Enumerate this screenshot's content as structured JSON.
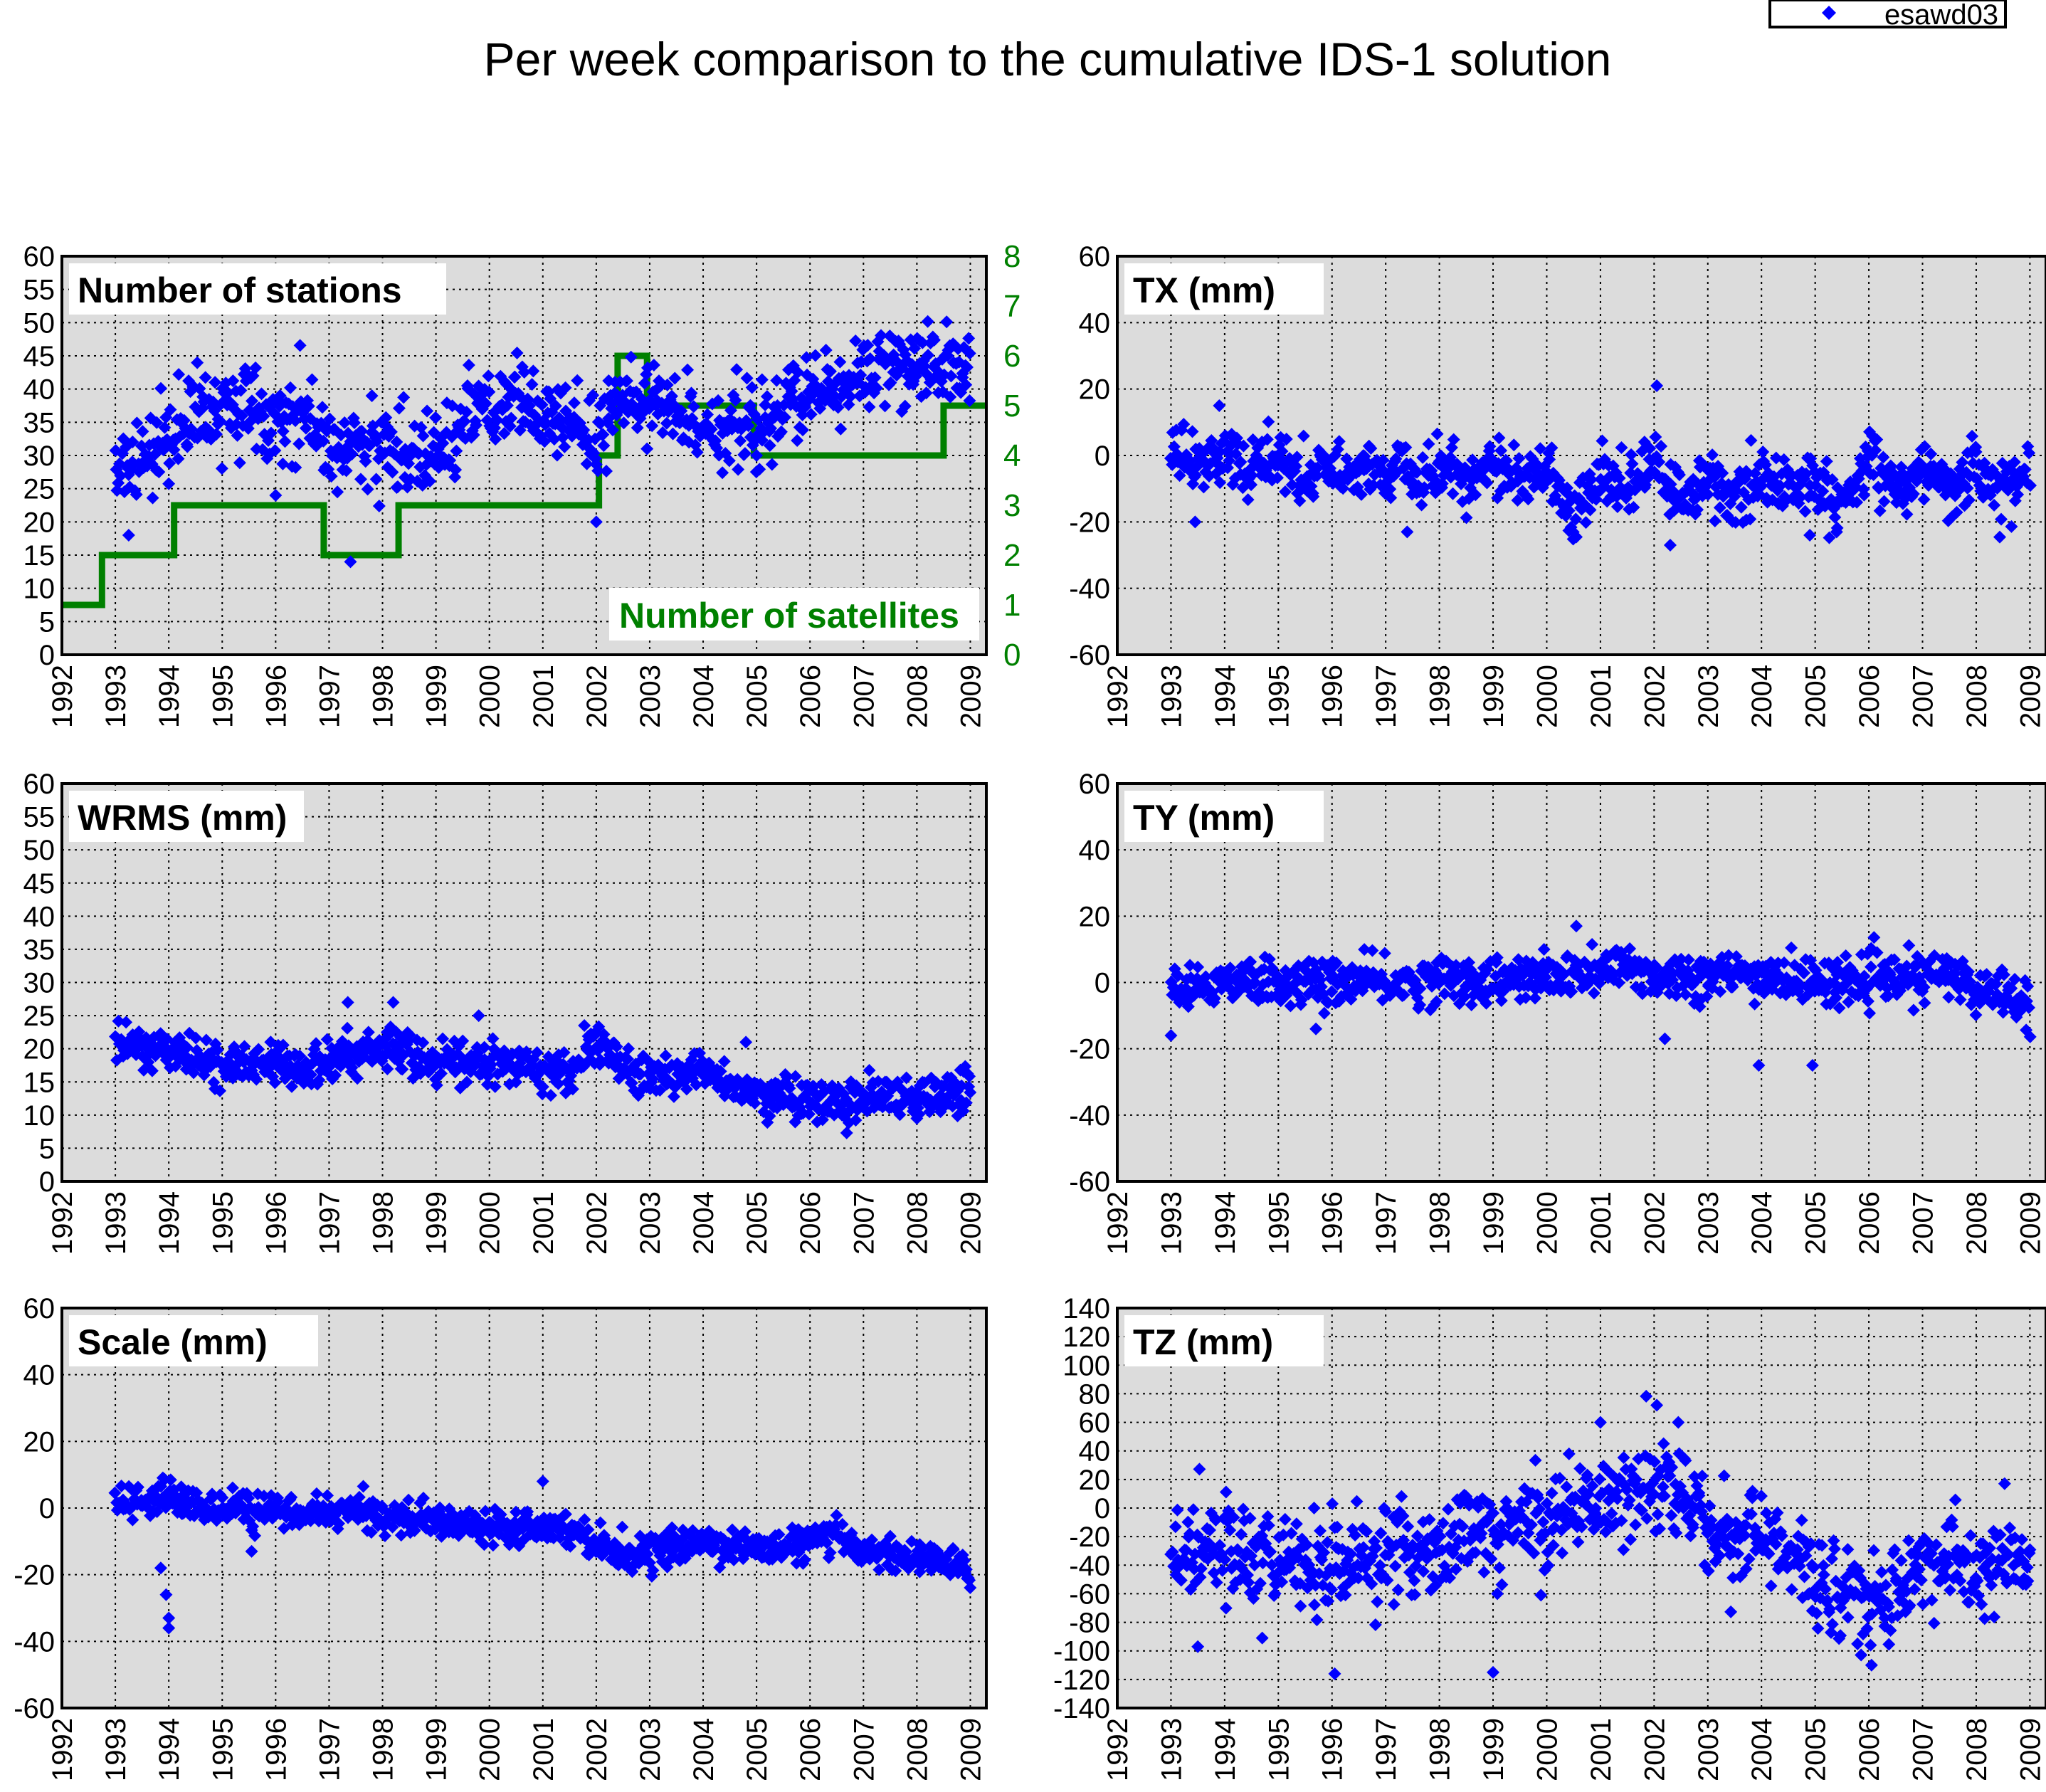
{
  "title": "Per week comparison to the cumulative IDS-1 solution",
  "legend": {
    "label": "esawd03",
    "color": "#0000ff",
    "marker": "diamond",
    "placement": "top-right"
  },
  "colors": {
    "plot_bg": "#dcdcdc",
    "points": "#0000ff",
    "satellites": "#008000",
    "frame": "#000000",
    "grid": "#000000"
  },
  "x_ticks": [
    "1992",
    "1993",
    "1994",
    "1995",
    "1996",
    "1997",
    "1998",
    "1999",
    "2000",
    "2001",
    "2002",
    "2003",
    "2004",
    "2005",
    "2006",
    "2007",
    "2008",
    "2009"
  ],
  "chart_data": [
    {
      "id": "stations",
      "type": "scatter",
      "label": "Number of stations",
      "xlim": [
        1992,
        2009.3
      ],
      "ylim": [
        0,
        60
      ],
      "yticks": [
        "0",
        "5",
        "10",
        "15",
        "20",
        "25",
        "30",
        "35",
        "40",
        "45",
        "50",
        "55",
        "60"
      ],
      "grid": true,
      "trend": [
        [
          1993.0,
          28
        ],
        [
          1993.5,
          30
        ],
        [
          1994.0,
          32
        ],
        [
          1994.5,
          37
        ],
        [
          1995.0,
          37
        ],
        [
          1995.5,
          38
        ],
        [
          1996.0,
          36
        ],
        [
          1996.5,
          37
        ],
        [
          1997.0,
          31
        ],
        [
          1997.5,
          31
        ],
        [
          1998.0,
          32
        ],
        [
          1998.5,
          30
        ],
        [
          1999.0,
          30
        ],
        [
          1999.5,
          35
        ],
        [
          2000.0,
          36
        ],
        [
          2000.5,
          38
        ],
        [
          2001.0,
          35
        ],
        [
          2001.5,
          35
        ],
        [
          2002.0,
          33
        ],
        [
          2002.5,
          38
        ],
        [
          2003.0,
          38
        ],
        [
          2003.5,
          36
        ],
        [
          2004.0,
          35
        ],
        [
          2004.5,
          34
        ],
        [
          2005.0,
          34
        ],
        [
          2005.5,
          37
        ],
        [
          2006.0,
          39
        ],
        [
          2006.5,
          40
        ],
        [
          2007.0,
          42
        ],
        [
          2007.5,
          45
        ],
        [
          2008.0,
          42
        ],
        [
          2008.5,
          43
        ],
        [
          2009.0,
          44
        ]
      ],
      "noise": 3.0,
      "outliers": [
        [
          1993.25,
          18
        ],
        [
          1996.0,
          24
        ],
        [
          1997.4,
          14
        ],
        [
          2002.0,
          20
        ],
        [
          2002.95,
          31
        ],
        [
          2005.0,
          30
        ]
      ],
      "secondary_axis": {
        "label": "Number of satellites",
        "ylim": [
          0,
          8
        ],
        "yticks": [
          "0",
          "1",
          "2",
          "3",
          "4",
          "5",
          "6",
          "7",
          "8"
        ],
        "step_series": [
          [
            1992.0,
            1
          ],
          [
            1992.75,
            2
          ],
          [
            1994.1,
            3
          ],
          [
            1996.9,
            2
          ],
          [
            1998.3,
            3
          ],
          [
            2002.05,
            4
          ],
          [
            2002.4,
            6
          ],
          [
            2002.95,
            5
          ],
          [
            2004.95,
            4
          ],
          [
            2008.5,
            5
          ],
          [
            2009.3,
            5
          ]
        ]
      }
    },
    {
      "id": "tx",
      "type": "scatter",
      "label": "TX (mm)",
      "xlim": [
        1992,
        2009.3
      ],
      "ylim": [
        -60,
        60
      ],
      "yticks": [
        "-60",
        "-40",
        "-20",
        "0",
        "20",
        "40",
        "60"
      ],
      "grid": true,
      "trend": [
        [
          1993.0,
          0
        ],
        [
          1993.5,
          -2
        ],
        [
          1994.0,
          -3
        ],
        [
          1994.5,
          -4
        ],
        [
          1995.0,
          -2
        ],
        [
          1995.5,
          -5
        ],
        [
          1996.0,
          -3
        ],
        [
          1996.5,
          -5
        ],
        [
          1997.0,
          -4
        ],
        [
          1997.5,
          -6
        ],
        [
          1998.0,
          -4
        ],
        [
          1998.5,
          -8
        ],
        [
          1999.0,
          -5
        ],
        [
          1999.5,
          -7
        ],
        [
          2000.0,
          -5
        ],
        [
          2000.5,
          -18
        ],
        [
          2001.0,
          -5
        ],
        [
          2001.5,
          -12
        ],
        [
          2002.0,
          -2
        ],
        [
          2002.5,
          -15
        ],
        [
          2003.0,
          -6
        ],
        [
          2003.5,
          -14
        ],
        [
          2004.0,
          -8
        ],
        [
          2004.5,
          -10
        ],
        [
          2005.0,
          -8
        ],
        [
          2005.5,
          -14
        ],
        [
          2006.0,
          -2
        ],
        [
          2006.5,
          -10
        ],
        [
          2007.0,
          -6
        ],
        [
          2007.5,
          -10
        ],
        [
          2008.0,
          -3
        ],
        [
          2008.5,
          -12
        ],
        [
          2009.0,
          -4
        ]
      ],
      "noise": 4.5,
      "outliers": [
        [
          1993.45,
          -20
        ],
        [
          1993.9,
          15
        ],
        [
          1997.4,
          -23
        ],
        [
          2002.05,
          21
        ],
        [
          2002.3,
          -27
        ],
        [
          2004.9,
          -24
        ],
        [
          2005.4,
          -23
        ]
      ]
    },
    {
      "id": "wrms",
      "type": "scatter",
      "label": "WRMS (mm)",
      "xlim": [
        1992,
        2009.3
      ],
      "ylim": [
        0,
        60
      ],
      "yticks": [
        "0",
        "5",
        "10",
        "15",
        "20",
        "25",
        "30",
        "35",
        "40",
        "45",
        "50",
        "55",
        "60"
      ],
      "grid": true,
      "trend": [
        [
          1993.0,
          21
        ],
        [
          1993.5,
          20
        ],
        [
          1994.0,
          20
        ],
        [
          1994.5,
          18
        ],
        [
          1995.0,
          18
        ],
        [
          1995.5,
          18
        ],
        [
          1996.0,
          18
        ],
        [
          1996.5,
          17
        ],
        [
          1997.0,
          18
        ],
        [
          1997.5,
          19
        ],
        [
          1998.0,
          20
        ],
        [
          1998.5,
          19
        ],
        [
          1999.0,
          18
        ],
        [
          1999.5,
          18
        ],
        [
          2000.0,
          18
        ],
        [
          2000.5,
          17
        ],
        [
          2001.0,
          17
        ],
        [
          2001.5,
          16
        ],
        [
          2002.0,
          21
        ],
        [
          2002.5,
          17
        ],
        [
          2003.0,
          16
        ],
        [
          2003.5,
          16
        ],
        [
          2004.0,
          16
        ],
        [
          2004.5,
          15
        ],
        [
          2005.0,
          13
        ],
        [
          2005.5,
          13
        ],
        [
          2006.0,
          13
        ],
        [
          2006.5,
          12
        ],
        [
          2007.0,
          12
        ],
        [
          2007.5,
          12
        ],
        [
          2008.0,
          12
        ],
        [
          2008.5,
          13
        ],
        [
          2009.0,
          14
        ]
      ],
      "noise": 1.6,
      "outliers": [
        [
          1993.2,
          24
        ],
        [
          1997.35,
          27
        ],
        [
          1998.2,
          27
        ],
        [
          1999.8,
          25
        ],
        [
          2004.8,
          21
        ],
        [
          2008.0,
          9.5
        ]
      ]
    },
    {
      "id": "ty",
      "type": "scatter",
      "label": "TY (mm)",
      "xlim": [
        1992,
        2009.3
      ],
      "ylim": [
        -60,
        60
      ],
      "yticks": [
        "-60",
        "-40",
        "-20",
        "0",
        "20",
        "40",
        "60"
      ],
      "grid": true,
      "trend": [
        [
          1993.0,
          0
        ],
        [
          1993.5,
          0
        ],
        [
          1994.0,
          1
        ],
        [
          1994.5,
          1
        ],
        [
          1995.0,
          0
        ],
        [
          1995.5,
          0
        ],
        [
          1996.0,
          0
        ],
        [
          1996.5,
          0
        ],
        [
          1997.0,
          0
        ],
        [
          1997.5,
          0
        ],
        [
          1998.0,
          1
        ],
        [
          1998.5,
          1
        ],
        [
          1999.0,
          0
        ],
        [
          1999.5,
          1
        ],
        [
          2000.0,
          1
        ],
        [
          2000.5,
          2
        ],
        [
          2001.0,
          3
        ],
        [
          2001.5,
          5
        ],
        [
          2002.0,
          2
        ],
        [
          2002.5,
          2
        ],
        [
          2003.0,
          2
        ],
        [
          2003.5,
          2
        ],
        [
          2004.0,
          2
        ],
        [
          2004.5,
          1
        ],
        [
          2005.0,
          0
        ],
        [
          2005.5,
          1
        ],
        [
          2006.0,
          0
        ],
        [
          2006.5,
          1
        ],
        [
          2007.0,
          1
        ],
        [
          2007.5,
          3
        ],
        [
          2008.0,
          -3
        ],
        [
          2008.5,
          -2
        ],
        [
          2009.0,
          -6
        ]
      ],
      "noise": 3.5,
      "outliers": [
        [
          1993.0,
          -16
        ],
        [
          1995.7,
          -14
        ],
        [
          2000.55,
          17
        ],
        [
          2002.2,
          -17
        ],
        [
          2003.95,
          -25
        ],
        [
          2004.95,
          -25
        ]
      ]
    },
    {
      "id": "scale",
      "type": "scatter",
      "label": "Scale (mm)",
      "xlim": [
        1992,
        2009.3
      ],
      "ylim": [
        -60,
        60
      ],
      "yticks": [
        "-60",
        "-40",
        "-20",
        "0",
        "20",
        "40",
        "60"
      ],
      "grid": true,
      "trend": [
        [
          1993.0,
          2
        ],
        [
          1993.5,
          3
        ],
        [
          1994.0,
          3
        ],
        [
          1994.5,
          1
        ],
        [
          1995.0,
          0
        ],
        [
          1995.5,
          0
        ],
        [
          1996.0,
          -1
        ],
        [
          1996.5,
          -2
        ],
        [
          1997.0,
          -1
        ],
        [
          1997.5,
          -1
        ],
        [
          1998.0,
          -2
        ],
        [
          1998.5,
          -3
        ],
        [
          1999.0,
          -4
        ],
        [
          1999.5,
          -5
        ],
        [
          2000.0,
          -5
        ],
        [
          2000.5,
          -5
        ],
        [
          2001.0,
          -5
        ],
        [
          2001.5,
          -6
        ],
        [
          2002.0,
          -10
        ],
        [
          2002.5,
          -14
        ],
        [
          2003.0,
          -13
        ],
        [
          2003.5,
          -12
        ],
        [
          2004.0,
          -10
        ],
        [
          2004.5,
          -11
        ],
        [
          2005.0,
          -12
        ],
        [
          2005.5,
          -12
        ],
        [
          2006.0,
          -10
        ],
        [
          2006.5,
          -9
        ],
        [
          2007.0,
          -12
        ],
        [
          2007.5,
          -14
        ],
        [
          2008.0,
          -15
        ],
        [
          2008.5,
          -16
        ],
        [
          2009.0,
          -20
        ]
      ],
      "noise": 2.4,
      "outliers": [
        [
          1993.85,
          -18
        ],
        [
          1993.95,
          -26
        ],
        [
          1994.0,
          -33
        ],
        [
          1994.0,
          -36
        ],
        [
          1995.55,
          -13
        ],
        [
          2001.0,
          8
        ]
      ]
    },
    {
      "id": "tz",
      "type": "scatter",
      "label": "TZ (mm)",
      "xlim": [
        1992,
        2009.3
      ],
      "ylim": [
        -140,
        140
      ],
      "yticks": [
        "-140",
        "-120",
        "-100",
        "-80",
        "-60",
        "-40",
        "-20",
        "0",
        "20",
        "40",
        "60",
        "80",
        "100",
        "120",
        "140"
      ],
      "grid": true,
      "trend": [
        [
          1993.0,
          -25
        ],
        [
          1993.5,
          -30
        ],
        [
          1994.0,
          -30
        ],
        [
          1994.5,
          -35
        ],
        [
          1995.0,
          -40
        ],
        [
          1995.5,
          -40
        ],
        [
          1996.0,
          -40
        ],
        [
          1996.5,
          -35
        ],
        [
          1997.0,
          -35
        ],
        [
          1997.5,
          -30
        ],
        [
          1998.0,
          -25
        ],
        [
          1998.5,
          -20
        ],
        [
          1999.0,
          -20
        ],
        [
          1999.5,
          -10
        ],
        [
          2000.0,
          -5
        ],
        [
          2000.5,
          0
        ],
        [
          2001.0,
          5
        ],
        [
          2001.5,
          15
        ],
        [
          2002.0,
          20
        ],
        [
          2002.5,
          10
        ],
        [
          2003.0,
          -15
        ],
        [
          2003.5,
          -20
        ],
        [
          2004.0,
          -20
        ],
        [
          2004.5,
          -35
        ],
        [
          2005.0,
          -50
        ],
        [
          2005.5,
          -55
        ],
        [
          2006.0,
          -70
        ],
        [
          2006.5,
          -55
        ],
        [
          2007.0,
          -40
        ],
        [
          2007.5,
          -40
        ],
        [
          2008.0,
          -45
        ],
        [
          2008.5,
          -40
        ],
        [
          2009.0,
          -35
        ]
      ],
      "noise": 17,
      "outliers": [
        [
          1993.5,
          -97
        ],
        [
          1994.7,
          -91
        ],
        [
          1996.05,
          -116
        ],
        [
          1999.0,
          -115
        ],
        [
          2002.05,
          72
        ],
        [
          2002.45,
          60
        ],
        [
          2006.05,
          -110
        ],
        [
          2001.0,
          60
        ]
      ]
    }
  ]
}
